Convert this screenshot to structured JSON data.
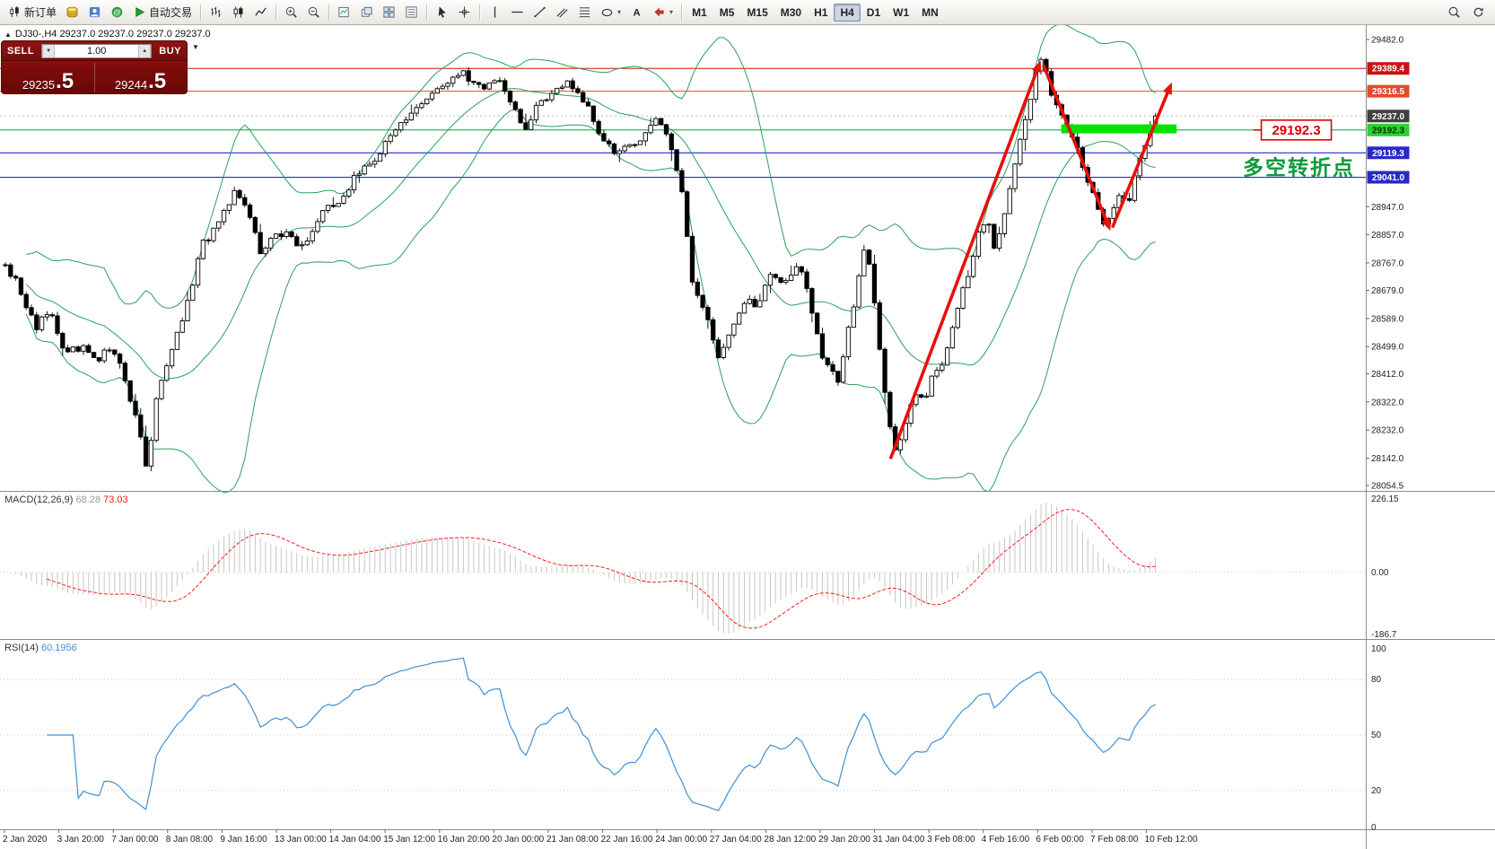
{
  "glyphs": {
    "expander": "▲",
    "caret_down_small": "▼",
    "caret_up_small": "▲",
    "dropdown_caret": "▾"
  },
  "toolbar": {
    "active_timeframe": "H4",
    "groups": [
      {
        "name": "trade",
        "items": [
          {
            "name": "new-order-button",
            "icon": "candles",
            "label": "新订单"
          },
          {
            "name": "deposit-button",
            "icon": "gold"
          },
          {
            "name": "accounts-button",
            "icon": "accounts"
          },
          {
            "name": "community-button",
            "icon": "community"
          },
          {
            "name": "auto-trading-button",
            "icon": "play",
            "label": "自动交易"
          }
        ]
      },
      {
        "name": "chart-type",
        "items": [
          {
            "name": "bar-chart-button",
            "icon": "bar"
          },
          {
            "name": "candlestick-chart-button",
            "icon": "candle"
          },
          {
            "name": "line-chart-button",
            "icon": "line"
          }
        ]
      },
      {
        "name": "zoom",
        "items": [
          {
            "name": "zoom-in-button",
            "icon": "zoomin"
          },
          {
            "name": "zoom-out-button",
            "icon": "zoomout"
          }
        ]
      },
      {
        "name": "windows",
        "items": [
          {
            "name": "new-chart-button",
            "icon": "newchart"
          },
          {
            "name": "cascade-windows-button",
            "icon": "cascade"
          },
          {
            "name": "tile-windows-button",
            "icon": "tile"
          },
          {
            "name": "indicators-list-button",
            "icon": "list"
          }
        ]
      },
      {
        "name": "cursors",
        "items": [
          {
            "name": "cursor-button",
            "icon": "cursor"
          },
          {
            "name": "crosshair-button",
            "icon": "crosshair"
          }
        ]
      },
      {
        "name": "objects",
        "items": [
          {
            "name": "vertical-line-button",
            "icon": "vline"
          },
          {
            "name": "horizontal-line-button",
            "icon": "hline"
          },
          {
            "name": "trendline-button",
            "icon": "trend"
          },
          {
            "name": "channel-button",
            "icon": "channel"
          },
          {
            "name": "fibonacci-button",
            "icon": "fibo"
          },
          {
            "name": "shapes-button",
            "icon": "shapes",
            "caret": true
          },
          {
            "name": "text-button",
            "icon": "text"
          },
          {
            "name": "arrows-button",
            "icon": "arrowlbl",
            "caret": true
          }
        ]
      },
      {
        "name": "timeframes",
        "items": [
          {
            "name": "timeframe-m1-button",
            "label": "M1"
          },
          {
            "name": "timeframe-m5-button",
            "label": "M5"
          },
          {
            "name": "timeframe-m15-button",
            "label": "M15"
          },
          {
            "name": "timeframe-m30-button",
            "label": "M30"
          },
          {
            "name": "timeframe-h1-button",
            "label": "H1"
          },
          {
            "name": "timeframe-h4-button",
            "label": "H4"
          },
          {
            "name": "timeframe-d1-button",
            "label": "D1"
          },
          {
            "name": "timeframe-w1-button",
            "label": "W1"
          },
          {
            "name": "timeframe-mn-button",
            "label": "MN"
          }
        ]
      }
    ],
    "right_items": [
      {
        "name": "search-button",
        "icon": "search"
      },
      {
        "name": "refresh-button",
        "icon": "refresh"
      }
    ]
  },
  "quote_line": {
    "symbol": "DJ30-,H4",
    "open": "29237.0",
    "high": "29237.0",
    "low": "29237.0",
    "close": "29237.0"
  },
  "trade_panel": {
    "sell_label": "SELL",
    "buy_label": "BUY",
    "volume": "1.00",
    "sell_price": "29235.5",
    "buy_price": "29244.5"
  },
  "colors": {
    "bull": "#ffffff",
    "bear": "#000000",
    "wick": "#000000",
    "bollinger": "#2aa05a",
    "macd_hist": "#c6c6c6",
    "macd_signal": "#ff1a1a",
    "rsi_line": "#3f8fd2",
    "annotation_red": "#e8100c",
    "zone_green": "#00e400",
    "callout_red": "#e00000",
    "note_green": "#0a9b3a",
    "separator": "#8c8c8c",
    "grid_dotted": "#c8c8c8",
    "axis_text": "#222222"
  },
  "chart_data": {
    "type": "candlestick",
    "symbol": "DJ30-",
    "timeframe": "H4",
    "candle_count": 222,
    "current_price": 29237.0,
    "price_range": [
      28054.5,
      29482.0
    ],
    "bollinger": {
      "period": 20,
      "deviation": 2
    },
    "price_path": [
      [
        0.004,
        28760
      ],
      [
        0.013,
        28700
      ],
      [
        0.026,
        28560
      ],
      [
        0.036,
        28620
      ],
      [
        0.046,
        28480
      ],
      [
        0.062,
        28500
      ],
      [
        0.072,
        28450
      ],
      [
        0.082,
        28510
      ],
      [
        0.092,
        28380
      ],
      [
        0.102,
        28230
      ],
      [
        0.108,
        28100
      ],
      [
        0.115,
        28350
      ],
      [
        0.125,
        28480
      ],
      [
        0.138,
        28650
      ],
      [
        0.148,
        28830
      ],
      [
        0.161,
        28890
      ],
      [
        0.172,
        29010
      ],
      [
        0.181,
        28950
      ],
      [
        0.19,
        28800
      ],
      [
        0.2,
        28850
      ],
      [
        0.21,
        28870
      ],
      [
        0.22,
        28820
      ],
      [
        0.23,
        28880
      ],
      [
        0.24,
        28950
      ],
      [
        0.25,
        28970
      ],
      [
        0.26,
        29050
      ],
      [
        0.27,
        29080
      ],
      [
        0.279,
        29130
      ],
      [
        0.289,
        29190
      ],
      [
        0.299,
        29240
      ],
      [
        0.309,
        29280
      ],
      [
        0.319,
        29330
      ],
      [
        0.328,
        29350
      ],
      [
        0.338,
        29380
      ],
      [
        0.348,
        29340
      ],
      [
        0.358,
        29330
      ],
      [
        0.365,
        29360
      ],
      [
        0.374,
        29290
      ],
      [
        0.384,
        29200
      ],
      [
        0.394,
        29270
      ],
      [
        0.404,
        29310
      ],
      [
        0.414,
        29340
      ],
      [
        0.424,
        29320
      ],
      [
        0.434,
        29230
      ],
      [
        0.443,
        29150
      ],
      [
        0.453,
        29120
      ],
      [
        0.463,
        29150
      ],
      [
        0.473,
        29180
      ],
      [
        0.483,
        29230
      ],
      [
        0.493,
        29100
      ],
      [
        0.499,
        29000
      ],
      [
        0.507,
        28700
      ],
      [
        0.516,
        28620
      ],
      [
        0.526,
        28450
      ],
      [
        0.535,
        28550
      ],
      [
        0.545,
        28650
      ],
      [
        0.555,
        28620
      ],
      [
        0.565,
        28740
      ],
      [
        0.575,
        28700
      ],
      [
        0.585,
        28780
      ],
      [
        0.595,
        28600
      ],
      [
        0.604,
        28440
      ],
      [
        0.614,
        28390
      ],
      [
        0.624,
        28610
      ],
      [
        0.634,
        28840
      ],
      [
        0.644,
        28500
      ],
      [
        0.65,
        28260
      ],
      [
        0.657,
        28150
      ],
      [
        0.664,
        28280
      ],
      [
        0.67,
        28350
      ],
      [
        0.677,
        28320
      ],
      [
        0.683,
        28420
      ],
      [
        0.69,
        28440
      ],
      [
        0.697,
        28540
      ],
      [
        0.703,
        28650
      ],
      [
        0.71,
        28750
      ],
      [
        0.716,
        28850
      ],
      [
        0.723,
        28920
      ],
      [
        0.728,
        28800
      ],
      [
        0.734,
        28900
      ],
      [
        0.741,
        29050
      ],
      [
        0.749,
        29200
      ],
      [
        0.756,
        29330
      ],
      [
        0.762,
        29430
      ],
      [
        0.769,
        29320
      ],
      [
        0.775,
        29250
      ],
      [
        0.782,
        29200
      ],
      [
        0.788,
        29150
      ],
      [
        0.795,
        29050
      ],
      [
        0.801,
        28980
      ],
      [
        0.808,
        28890
      ],
      [
        0.814,
        28930
      ],
      [
        0.821,
        29000
      ],
      [
        0.826,
        28950
      ],
      [
        0.831,
        29050
      ],
      [
        0.836,
        29120
      ],
      [
        0.841,
        29190
      ],
      [
        0.846,
        29237
      ]
    ],
    "levels": [
      {
        "price": 29389.4,
        "color": "#c81414"
      },
      {
        "price": 29316.5,
        "color": "#e6492e"
      },
      {
        "price": 29192.3,
        "color": "#12b04a"
      },
      {
        "price": 29119.3,
        "color": "#2929c8"
      },
      {
        "price": 29041.0,
        "color": "#2929c8"
      }
    ],
    "price_ticks": [
      29482.0,
      28947.0,
      28857.0,
      28767.0,
      28679.0,
      28589.0,
      28499.0,
      28412.0,
      28322.0,
      28232.0,
      28142.0,
      28054.5
    ],
    "price_badges": [
      {
        "price": 29389.4,
        "text": "29389.4",
        "bg": "#c81414",
        "fg": "#ffffff"
      },
      {
        "price": 29316.5,
        "text": "29316.5",
        "bg": "#e6492e",
        "fg": "#ffffff"
      },
      {
        "price": 29237.0,
        "text": "29237.0",
        "bg": "#404040",
        "fg": "#ffffff"
      },
      {
        "price": 29192.3,
        "text": "29192.3",
        "bg": "#2fd032",
        "fg": "#003300"
      },
      {
        "price": 29119.3,
        "text": "29119.3",
        "bg": "#2929c8",
        "fg": "#ffffff"
      },
      {
        "price": 29041.0,
        "text": "29041.0",
        "bg": "#2929c8",
        "fg": "#ffffff"
      }
    ],
    "time_labels": [
      "2 Jan 2020",
      "3 Jan 20:00",
      "7 Jan 00:00",
      "8 Jan 08:00",
      "9 Jan 16:00",
      "13 Jan 00:00",
      "14 Jan 04:00",
      "15 Jan 12:00",
      "16 Jan 20:00",
      "20 Jan 00:00",
      "21 Jan 08:00",
      "22 Jan 16:00",
      "24 Jan 00:00",
      "27 Jan 04:00",
      "28 Jan 12:00",
      "29 Jan 20:00",
      "31 Jan 04:00",
      "3 Feb 08:00",
      "4 Feb 16:00",
      "6 Feb 00:00",
      "7 Feb 08:00",
      "10 Feb 12:00"
    ],
    "macd": {
      "label": "MACD(12,26,9)",
      "main": "68.28",
      "signal": "73.03",
      "scale_max": 226.15,
      "scale_zero": "0.00",
      "scale_min": -186.7,
      "scale_max_text": "226.15",
      "scale_min_text": "-186.7"
    },
    "rsi": {
      "label": "RSI(14)",
      "value": "60.1956",
      "scale": [
        100,
        80,
        50,
        20,
        0
      ],
      "levels": [
        80,
        50,
        20
      ]
    },
    "annotations": {
      "arrows": [
        {
          "x1": 0.652,
          "p1": 28140,
          "x2": 0.762,
          "p2": 29415
        },
        {
          "x1": 0.764,
          "p1": 29400,
          "x2": 0.813,
          "p2": 28870
        },
        {
          "x1": 0.8145,
          "p1": 28880,
          "x2": 0.858,
          "p2": 29345
        }
      ],
      "zone_bar": {
        "x1": 0.777,
        "x2": 0.8615,
        "price": 29196,
        "thickness": 10
      },
      "callout": {
        "x": 0.9235,
        "price": 29192.3,
        "text": "29192.3"
      },
      "note": {
        "x": 0.91,
        "price": 29050,
        "text": "多空转折点"
      }
    }
  }
}
